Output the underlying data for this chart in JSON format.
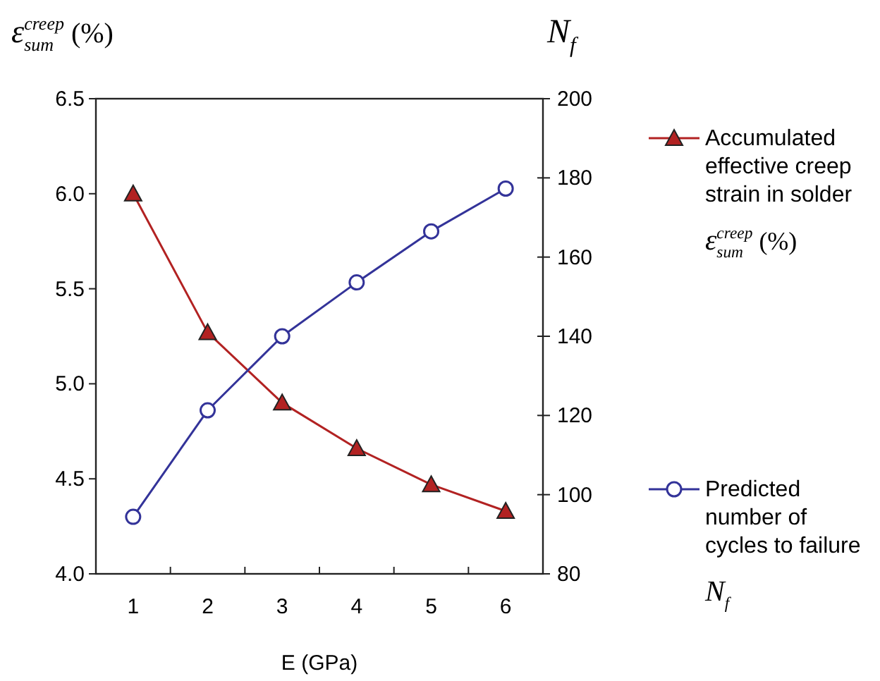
{
  "chart_data": {
    "type": "line",
    "xlabel": "E (GPa)",
    "ylabel": "ε$^{creep}$$_{sum}$ (%)",
    "y2label": "N$_{f}$",
    "categories": [
      "1",
      "2",
      "3",
      "4",
      "5",
      "6"
    ],
    "ylim": [
      4.0,
      6.5
    ],
    "yticks": [
      {
        "value": 4.0,
        "label": "4.0"
      },
      4.5,
      {
        "value": 5.0,
        "label": "5.0"
      },
      5.5,
      {
        "value": 6.0,
        "label": "6.0"
      },
      6.5
    ],
    "y2lim": [
      80,
      200
    ],
    "y2ticks": [
      80,
      100,
      120,
      140,
      160,
      180,
      200
    ],
    "grid": false,
    "legend": "right",
    "line_style": "solid",
    "series": [
      {
        "name": "Accumulated effective creep strain in solder ε$^{creep}$$_{sum}$ (%)",
        "color": "#b22222",
        "marker": "triangle",
        "values": [
          6.0,
          5.27,
          4.9,
          4.66,
          4.47,
          4.33
        ]
      },
      {
        "name": "Predicted number of cycles to failure N$_{f}$",
        "color": "#333399",
        "marker": "circle",
        "axis": "y2",
        "values": [
          94.4,
          121.3,
          140,
          153.6,
          166.5,
          177.3
        ]
      }
    ]
  }
}
